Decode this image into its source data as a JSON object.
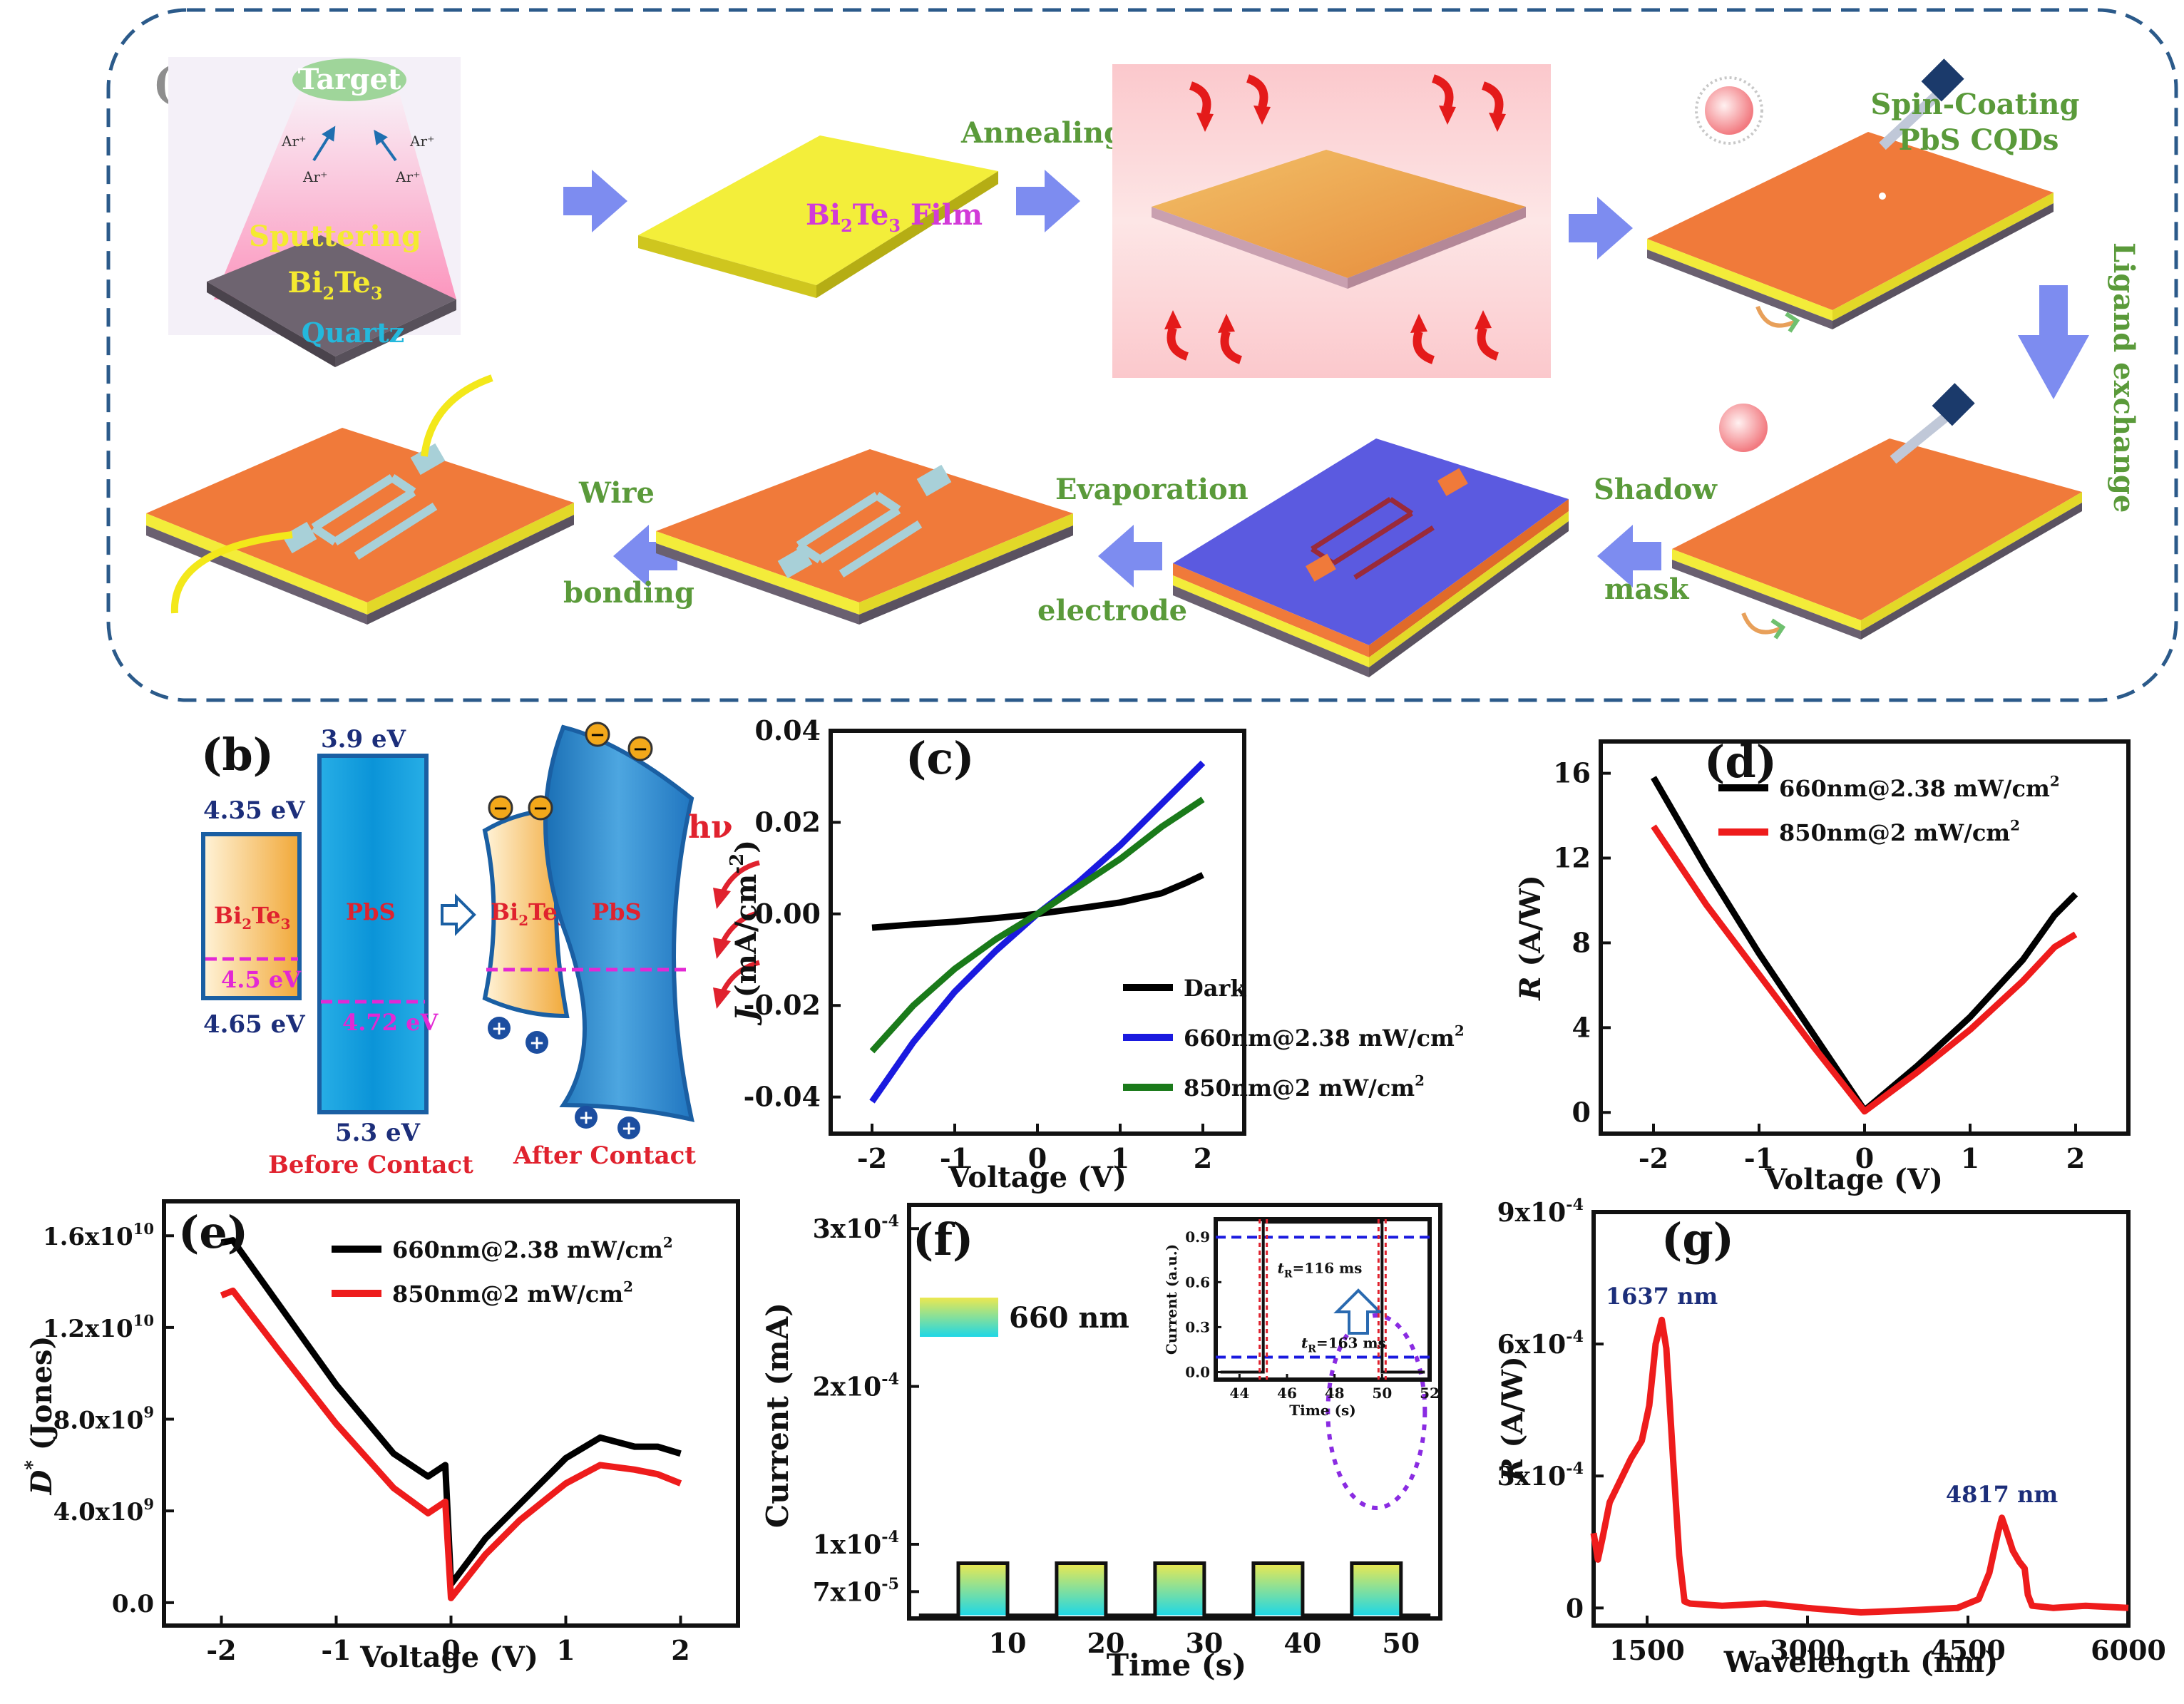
{
  "panel_a": {
    "label": "(a)",
    "sputter": {
      "target": "Target",
      "ion": "Ar⁺",
      "sputtering": "Sputtering",
      "material_base": "Bi",
      "material_sub1": "2",
      "material_mid": "Te",
      "material_sub2": "3",
      "substrate": "Quartz"
    },
    "film": {
      "base": "Bi",
      "sub1": "2",
      "mid": "Te",
      "sub2": "3",
      "tail": " Film"
    },
    "annealing": "Annealing",
    "spin_coating_1": "Spin-Coating",
    "spin_coating_2": "PbS CQDs",
    "ligand_exchange": "Ligand exchange",
    "shadow_1": "Shadow",
    "shadow_2": "mask",
    "evaporation_1": "Evaporation",
    "evaporation_2": "electrode",
    "wire_1": "Wire",
    "wire_2": "bonding"
  },
  "panel_b": {
    "label": "(b)",
    "e_43": "4.35 eV",
    "e_465": "4.65 eV",
    "e_39": "3.9 eV",
    "e_53": "5.3 eV",
    "e_45": "4.5 eV",
    "e_472": "4.72 eV",
    "bi_base": "Bi",
    "bi_sub1": "2",
    "bi_mid": "Te",
    "bi_sub2": "3",
    "pbs": "PbS",
    "hv": "hν",
    "before": "Before Contact",
    "after": "After Contact",
    "minus": "−",
    "plus": "+"
  },
  "chart_data": [
    {
      "panel": "(c)",
      "type": "line",
      "xlabel": "Voltage (V)",
      "ylabel": "J (mA/cm⁻²)",
      "ylabel_italic": "J",
      "ylabel_rest": " (mA/cm",
      "ylabel_sup": "-2",
      "ylabel_end": ")",
      "xlim": [
        -2.5,
        2.5
      ],
      "ylim": [
        -0.048,
        0.04
      ],
      "xticks": [
        "-2",
        "-1",
        "0",
        "1",
        "2"
      ],
      "xtick_values": [
        -2,
        -1,
        0,
        1,
        2
      ],
      "yticks": [
        "0.04",
        "0.02",
        "0.00",
        "-0.02",
        "-0.04"
      ],
      "ytick_values": [
        0.04,
        0.02,
        0.0,
        -0.02,
        -0.04
      ],
      "series": [
        {
          "name": "Dark",
          "color": "#000000",
          "x": [
            -2,
            -1.5,
            -1,
            -0.5,
            0,
            0.5,
            1,
            1.5,
            1.8,
            2
          ],
          "y": [
            -0.003,
            -0.0023,
            -0.0017,
            -0.0009,
            0,
            0.0012,
            0.0025,
            0.0045,
            0.0068,
            0.0085
          ]
        },
        {
          "name": "660nm@2.38 mW/cm",
          "sup": "2",
          "color": "#1a1adf",
          "x": [
            -2,
            -1.5,
            -1,
            -0.5,
            0,
            0.5,
            1,
            1.5,
            2
          ],
          "y": [
            -0.041,
            -0.028,
            -0.017,
            -0.008,
            0,
            0.007,
            0.015,
            0.024,
            0.033
          ]
        },
        {
          "name": "850nm@2 mW/cm",
          "sup": "2",
          "color": "#1a7a1a",
          "x": [
            -2,
            -1.5,
            -1,
            -0.5,
            0,
            0.5,
            1,
            1.5,
            2
          ],
          "y": [
            -0.03,
            -0.02,
            -0.012,
            -0.0055,
            0,
            0.006,
            0.012,
            0.019,
            0.025
          ]
        }
      ]
    },
    {
      "panel": "(d)",
      "type": "line",
      "xlabel": "Voltage (V)",
      "ylabel": "R (A/W)",
      "ylabel_italic": "R",
      "ylabel_rest": " (A/W)",
      "xlim": [
        -2.5,
        2.5
      ],
      "ylim": [
        -1,
        17.5
      ],
      "xticks": [
        "-2",
        "-1",
        "0",
        "1",
        "2"
      ],
      "xtick_values": [
        -2,
        -1,
        0,
        1,
        2
      ],
      "yticks": [
        "16",
        "12",
        "8",
        "4",
        "0"
      ],
      "ytick_values": [
        16,
        12,
        8,
        4,
        0
      ],
      "series": [
        {
          "name": "660nm@2.38 mW/cm",
          "sup": "2",
          "color": "#000000",
          "x": [
            -2,
            -1.5,
            -1,
            -0.5,
            0,
            0.5,
            1,
            1.5,
            1.8,
            2
          ],
          "y": [
            15.8,
            11.5,
            7.5,
            3.8,
            0.1,
            2.2,
            4.5,
            7.2,
            9.3,
            10.3
          ]
        },
        {
          "name": "850nm@2 mW/cm",
          "sup": "2",
          "color": "#ee1c1c",
          "x": [
            -2,
            -1.5,
            -1,
            -0.5,
            0,
            0.5,
            1,
            1.5,
            1.8,
            2
          ],
          "y": [
            13.5,
            9.8,
            6.5,
            3.2,
            0.05,
            1.9,
            3.9,
            6.2,
            7.8,
            8.4
          ]
        }
      ]
    },
    {
      "panel": "(e)",
      "type": "line",
      "xlabel": "Voltage (V)",
      "ylabel": "D* (Jones)",
      "ylabel_italic": "D",
      "ylabel_sup": "*",
      "ylabel_rest": " (Jones)",
      "xlim": [
        -2.5,
        2.5
      ],
      "ylim": [
        -1000000000.0,
        17500000000.0
      ],
      "xticks": [
        "-2",
        "-1",
        "0",
        "1",
        "2"
      ],
      "xtick_values": [
        -2,
        -1,
        0,
        1,
        2
      ],
      "yticks": [
        [
          "1.6x10",
          "10"
        ],
        [
          "1.2x10",
          "10"
        ],
        [
          "8.0x10",
          "9"
        ],
        [
          "4.0x10",
          "9"
        ],
        [
          "0.0",
          ""
        ]
      ],
      "ytick_values": [
        16000000000.0,
        12000000000.0,
        8000000000.0,
        4000000000.0,
        0
      ],
      "series": [
        {
          "name": "660nm@2.38 mW/cm",
          "sup": "2",
          "color": "#000000",
          "x": [
            -2,
            -1.9,
            -1.5,
            -1,
            -0.5,
            -0.2,
            -0.05,
            0,
            0.3,
            0.6,
            1,
            1.3,
            1.6,
            1.8,
            2
          ],
          "y": [
            15700000000.0,
            15800000000.0,
            13000000000.0,
            9500000000.0,
            6500000000.0,
            5500000000.0,
            6000000000.0,
            800000000.0,
            2800000000.0,
            4300000000.0,
            6300000000.0,
            7200000000.0,
            6800000000.0,
            6800000000.0,
            6500000000.0
          ]
        },
        {
          "name": "850nm@2 mW/cm",
          "sup": "2",
          "color": "#ee1c1c",
          "x": [
            -2,
            -1.9,
            -1.5,
            -1,
            -0.5,
            -0.2,
            -0.05,
            0,
            0.3,
            0.6,
            1,
            1.3,
            1.6,
            1.8,
            2
          ],
          "y": [
            13400000000.0,
            13600000000.0,
            11000000000.0,
            7800000000.0,
            5000000000.0,
            3900000000.0,
            4400000000.0,
            200000000.0,
            2100000000.0,
            3600000000.0,
            5200000000.0,
            6000000000.0,
            5800000000.0,
            5600000000.0,
            5200000000.0
          ]
        }
      ]
    },
    {
      "panel": "(f)",
      "type": "line",
      "xlabel": "Time (s)",
      "ylabel": "Current (mA)",
      "xlim": [
        0,
        54
      ],
      "ylim": [
        5.3e-05,
        0.000315
      ],
      "xticks": [
        "10",
        "20",
        "30",
        "40",
        "50"
      ],
      "xtick_values": [
        10,
        20,
        30,
        40,
        50
      ],
      "yticks": [
        [
          "3x10",
          "-4"
        ],
        [
          "2x10",
          "-4"
        ],
        [
          "1x10",
          "-4"
        ],
        [
          "7x10",
          "-5"
        ]
      ],
      "ytick_values": [
        0.0003,
        0.0002,
        0.0001,
        7e-05
      ],
      "legend": "660 nm",
      "on_intervals": [
        [
          5,
          10
        ],
        [
          15,
          20
        ],
        [
          25,
          30
        ],
        [
          35,
          40
        ],
        [
          45,
          50
        ]
      ],
      "dark": 5.5e-05,
      "light": 8.8e-05,
      "inset": {
        "xlabel": "Time (s)",
        "ylabel": "Current (a.u.)",
        "xlim": [
          43,
          52
        ],
        "ylim": [
          -0.05,
          1.02
        ],
        "xticks": [
          "44",
          "46",
          "48",
          "50",
          "52"
        ],
        "xtick_values": [
          44,
          46,
          48,
          50,
          52
        ],
        "yticks": [
          "0.9",
          "0.6",
          "0.3",
          "0.0"
        ],
        "ytick_values": [
          0.9,
          0.6,
          0.3,
          0.0
        ],
        "rise_label": "t",
        "rise_sub": "R",
        "rise_value": "=116 ms",
        "fall_label": "t",
        "fall_sub": "R",
        "fall_value": "=163 ms",
        "on": 45,
        "off": 50
      }
    },
    {
      "panel": "(g)",
      "type": "line",
      "xlabel": "Wavelength (nm)",
      "ylabel": "R (A/W)",
      "ylabel_italic": "R",
      "ylabel_rest": " (A/W)",
      "xlim": [
        1000,
        6000
      ],
      "ylim": [
        -4e-05,
        0.0009
      ],
      "xticks": [
        "1500",
        "3000",
        "4500",
        "6000"
      ],
      "xtick_values": [
        1500,
        3000,
        4500,
        6000
      ],
      "yticks": [
        [
          "9x10",
          "-4"
        ],
        [
          "6x10",
          "-4"
        ],
        [
          "3x10",
          "-4"
        ],
        [
          "0",
          ""
        ]
      ],
      "ytick_values": [
        0.0009,
        0.0006,
        0.0003,
        0
      ],
      "peaks": [
        {
          "label": "1637 nm",
          "x": 1637,
          "y": 0.000655
        },
        {
          "label": "4817 nm",
          "x": 4817,
          "y": 0.000205
        }
      ],
      "series": [
        {
          "name": "R",
          "color": "#ee1c1c",
          "x": [
            1000,
            1040,
            1080,
            1150,
            1250,
            1350,
            1450,
            1520,
            1580,
            1637,
            1680,
            1740,
            1800,
            1850,
            1900,
            2200,
            2600,
            3000,
            3500,
            4000,
            4400,
            4600,
            4700,
            4780,
            4817,
            4860,
            4920,
            4980,
            5030,
            5060,
            5100,
            5300,
            5600,
            6000
          ],
          "y": [
            0.00017,
            0.00011,
            0.000155,
            0.00024,
            0.00029,
            0.00034,
            0.00038,
            0.00046,
            0.0006,
            0.000655,
            0.00059,
            0.00035,
            0.00012,
            1.5e-05,
            1e-05,
            5e-06,
            1e-05,
            0,
            -1e-05,
            -5e-06,
            0,
            2e-05,
            8e-05,
            0.00017,
            0.000205,
            0.000175,
            0.00013,
            0.000105,
            9e-05,
            3e-05,
            5e-06,
            0,
            5e-06,
            0
          ]
        }
      ]
    }
  ],
  "colors": {
    "orange": "#f07a3a",
    "yellow": "#f2ec30",
    "blue_mask": "#5b5ae0",
    "arrow": "#7d8cf0",
    "green_text": "#5a9a3a",
    "dashed_border": "#2b5a8a"
  }
}
